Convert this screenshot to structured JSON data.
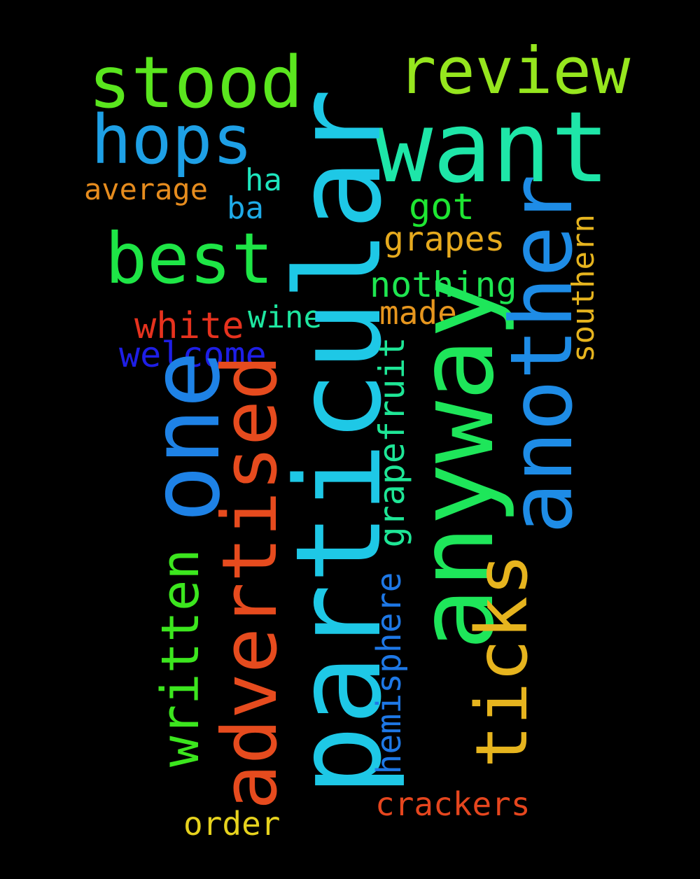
{
  "background": "#000000",
  "words": {
    "particular": {
      "text": "particular",
      "color": "#1ec8e6"
    },
    "anyway": {
      "text": "anyway",
      "color": "#1ee65a"
    },
    "want": {
      "text": "want",
      "color": "#1ee6a8"
    },
    "one": {
      "text": "one",
      "color": "#1e82e6"
    },
    "another": {
      "text": "another",
      "color": "#1e8ce6"
    },
    "advertised": {
      "text": "advertised",
      "color": "#e64b1e"
    },
    "stood": {
      "text": "stood",
      "color": "#5ae61e"
    },
    "review": {
      "text": "review",
      "color": "#96e61e"
    },
    "hops": {
      "text": "hops",
      "color": "#1ea0e6"
    },
    "best": {
      "text": "best",
      "color": "#1ee646"
    },
    "ticks": {
      "text": "ticks",
      "color": "#e6b41e"
    },
    "written": {
      "text": "written",
      "color": "#3ce61e"
    },
    "grapefruit": {
      "text": "grapefruit",
      "color": "#1ee696"
    },
    "hemisphere": {
      "text": "hemisphere",
      "color": "#1e78e6"
    },
    "southern": {
      "text": "southern",
      "color": "#e6b41e"
    },
    "average": {
      "text": "average",
      "color": "#e68c1e"
    },
    "ha": {
      "text": "ha",
      "color": "#1ee6be"
    },
    "ba": {
      "text": "ba",
      "color": "#1eaae6"
    },
    "got": {
      "text": "got",
      "color": "#1ee632"
    },
    "grapes": {
      "text": "grapes",
      "color": "#e6aa1e"
    },
    "nothing": {
      "text": "nothing",
      "color": "#1ee650"
    },
    "made": {
      "text": "made",
      "color": "#e6961e"
    },
    "white": {
      "text": "white",
      "color": "#e6321e"
    },
    "wine": {
      "text": "wine",
      "color": "#1ee6a0"
    },
    "welcome": {
      "text": "welcome",
      "color": "#1e1ee6"
    },
    "crackers": {
      "text": "crackers",
      "color": "#e6461e"
    },
    "order": {
      "text": "order",
      "color": "#e6d21e"
    }
  }
}
